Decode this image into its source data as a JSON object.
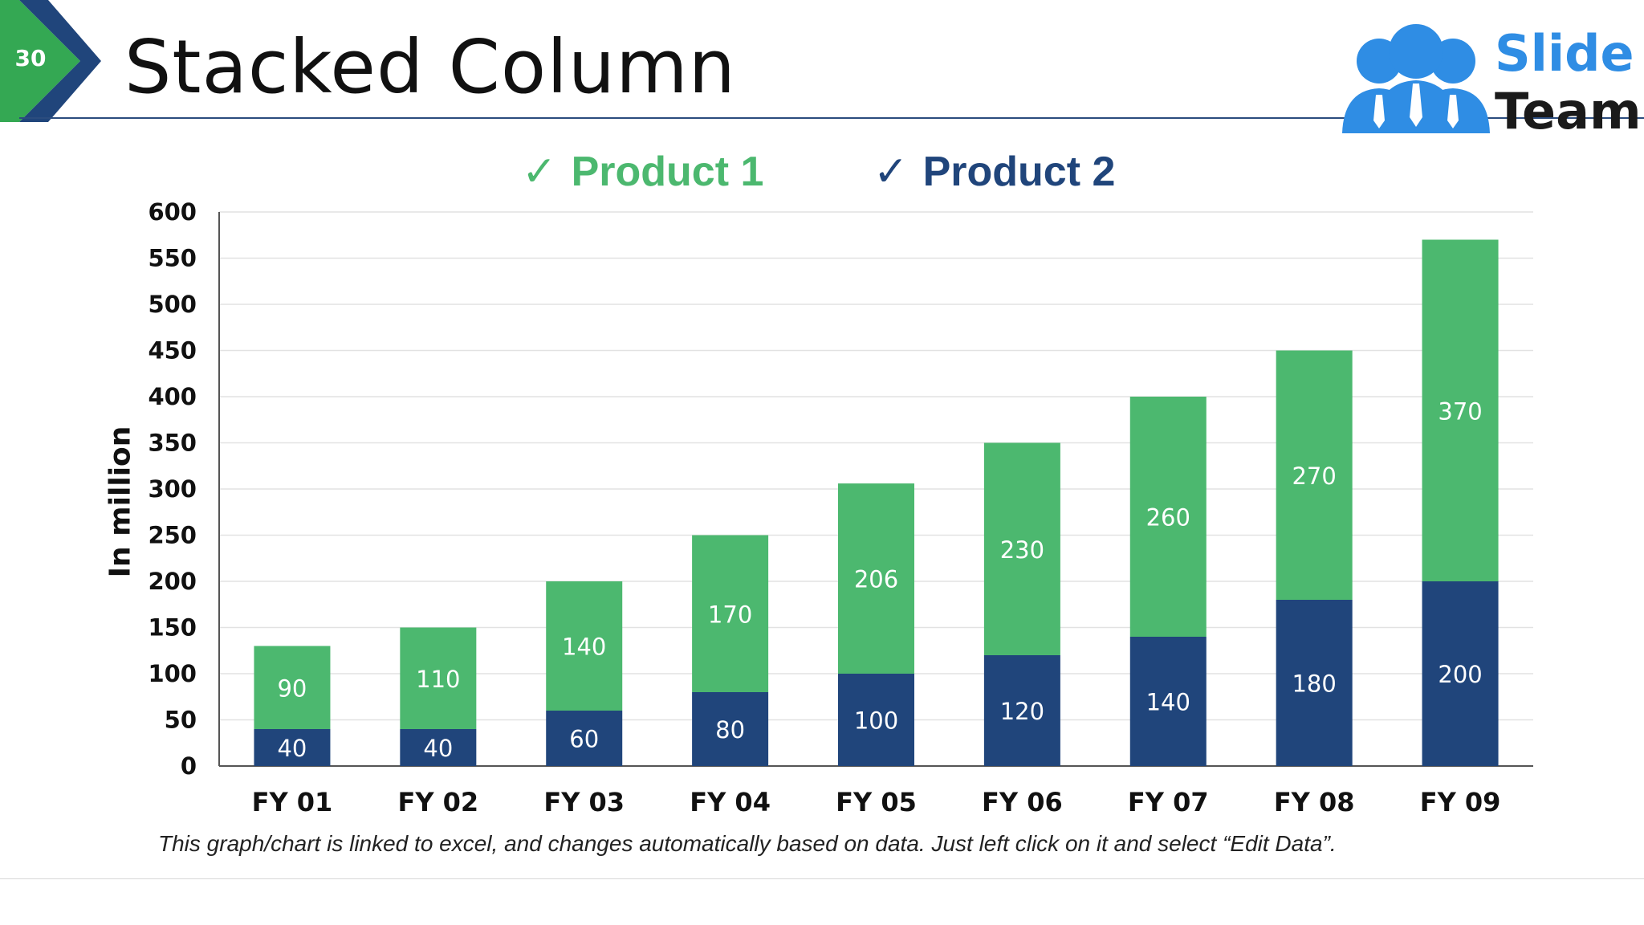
{
  "slide": {
    "number": "30",
    "title": "Stacked Column",
    "logo": {
      "line1": "Slide",
      "line2": "Team"
    },
    "note": "This graph/chart is linked to excel, and changes automatically based on data. Just left click on it and select “Edit Data”."
  },
  "legend": {
    "check": "✓",
    "items": [
      "Product 1",
      "Product 2"
    ]
  },
  "colors": {
    "product1": "#4cb86f",
    "product2": "#20457b",
    "badge_green": "#34a853",
    "badge_navy": "#20457b"
  },
  "chart_data": {
    "type": "bar",
    "stacked": true,
    "title": "",
    "xlabel": "",
    "ylabel": "In million",
    "ylim": [
      0,
      600
    ],
    "yticks": [
      0,
      50,
      100,
      150,
      200,
      250,
      300,
      350,
      400,
      450,
      500,
      550,
      600
    ],
    "categories": [
      "FY 01",
      "FY 02",
      "FY 03",
      "FY 04",
      "FY 05",
      "FY 06",
      "FY 07",
      "FY 08",
      "FY 09"
    ],
    "series": [
      {
        "name": "Product 2",
        "values": [
          40,
          40,
          60,
          80,
          100,
          120,
          140,
          180,
          200
        ]
      },
      {
        "name": "Product 1",
        "values": [
          90,
          110,
          140,
          170,
          206,
          230,
          260,
          270,
          370
        ]
      }
    ],
    "legend": "top-center",
    "grid": true
  }
}
